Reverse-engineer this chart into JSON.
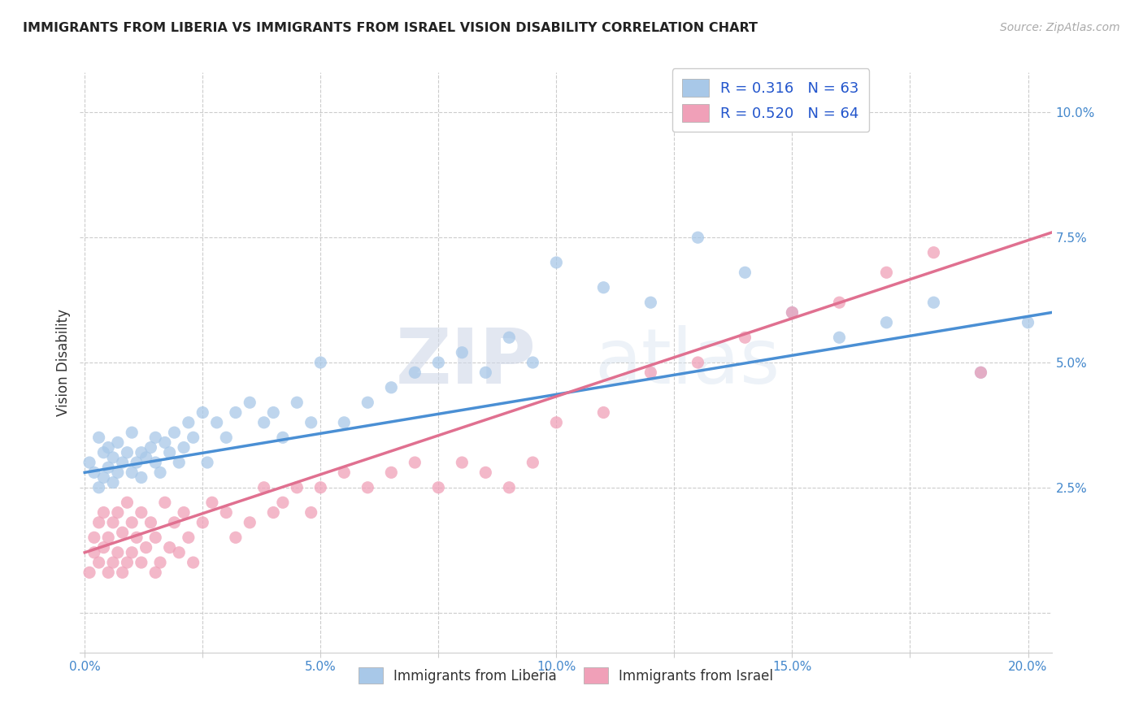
{
  "title": "IMMIGRANTS FROM LIBERIA VS IMMIGRANTS FROM ISRAEL VISION DISABILITY CORRELATION CHART",
  "source": "Source: ZipAtlas.com",
  "xlabel_ticks": [
    "0.0%",
    "",
    "5.0%",
    "",
    "10.0%",
    "",
    "15.0%",
    "",
    "20.0%"
  ],
  "xlabel_tick_vals": [
    0.0,
    0.025,
    0.05,
    0.075,
    0.1,
    0.125,
    0.15,
    0.175,
    0.2
  ],
  "ylabel": "Vision Disability",
  "ylabel_tick_vals": [
    0.0,
    0.025,
    0.05,
    0.075,
    0.1
  ],
  "ylabel_tick_labels": [
    "",
    "2.5%",
    "5.0%",
    "7.5%",
    "10.0%"
  ],
  "xlim": [
    -0.001,
    0.205
  ],
  "ylim": [
    -0.008,
    0.108
  ],
  "line_color_liberia": "#4a8fd4",
  "line_color_israel": "#e07090",
  "color_liberia": "#a8c8e8",
  "color_israel": "#f0a0b8",
  "watermark_zip": "ZIP",
  "watermark_atlas": "atlas",
  "liberia_scatter_x": [
    0.001,
    0.002,
    0.003,
    0.003,
    0.004,
    0.004,
    0.005,
    0.005,
    0.006,
    0.006,
    0.007,
    0.007,
    0.008,
    0.009,
    0.01,
    0.01,
    0.011,
    0.012,
    0.012,
    0.013,
    0.014,
    0.015,
    0.015,
    0.016,
    0.017,
    0.018,
    0.019,
    0.02,
    0.021,
    0.022,
    0.023,
    0.025,
    0.026,
    0.028,
    0.03,
    0.032,
    0.035,
    0.038,
    0.04,
    0.042,
    0.045,
    0.048,
    0.05,
    0.055,
    0.06,
    0.065,
    0.07,
    0.075,
    0.08,
    0.085,
    0.09,
    0.095,
    0.1,
    0.11,
    0.12,
    0.13,
    0.14,
    0.15,
    0.16,
    0.17,
    0.18,
    0.19,
    0.2
  ],
  "liberia_scatter_y": [
    0.03,
    0.028,
    0.035,
    0.025,
    0.032,
    0.027,
    0.029,
    0.033,
    0.031,
    0.026,
    0.034,
    0.028,
    0.03,
    0.032,
    0.028,
    0.036,
    0.03,
    0.032,
    0.027,
    0.031,
    0.033,
    0.035,
    0.03,
    0.028,
    0.034,
    0.032,
    0.036,
    0.03,
    0.033,
    0.038,
    0.035,
    0.04,
    0.03,
    0.038,
    0.035,
    0.04,
    0.042,
    0.038,
    0.04,
    0.035,
    0.042,
    0.038,
    0.05,
    0.038,
    0.042,
    0.045,
    0.048,
    0.05,
    0.052,
    0.048,
    0.055,
    0.05,
    0.07,
    0.065,
    0.062,
    0.075,
    0.068,
    0.06,
    0.055,
    0.058,
    0.062,
    0.048,
    0.058
  ],
  "israel_scatter_x": [
    0.001,
    0.002,
    0.002,
    0.003,
    0.003,
    0.004,
    0.004,
    0.005,
    0.005,
    0.006,
    0.006,
    0.007,
    0.007,
    0.008,
    0.008,
    0.009,
    0.009,
    0.01,
    0.01,
    0.011,
    0.012,
    0.012,
    0.013,
    0.014,
    0.015,
    0.015,
    0.016,
    0.017,
    0.018,
    0.019,
    0.02,
    0.021,
    0.022,
    0.023,
    0.025,
    0.027,
    0.03,
    0.032,
    0.035,
    0.038,
    0.04,
    0.042,
    0.045,
    0.048,
    0.05,
    0.055,
    0.06,
    0.065,
    0.07,
    0.075,
    0.08,
    0.085,
    0.09,
    0.095,
    0.1,
    0.11,
    0.12,
    0.13,
    0.14,
    0.15,
    0.16,
    0.17,
    0.18,
    0.19
  ],
  "israel_scatter_y": [
    0.008,
    0.012,
    0.015,
    0.01,
    0.018,
    0.013,
    0.02,
    0.008,
    0.015,
    0.01,
    0.018,
    0.012,
    0.02,
    0.008,
    0.016,
    0.01,
    0.022,
    0.012,
    0.018,
    0.015,
    0.01,
    0.02,
    0.013,
    0.018,
    0.008,
    0.015,
    0.01,
    0.022,
    0.013,
    0.018,
    0.012,
    0.02,
    0.015,
    0.01,
    0.018,
    0.022,
    0.02,
    0.015,
    0.018,
    0.025,
    0.02,
    0.022,
    0.025,
    0.02,
    0.025,
    0.028,
    0.025,
    0.028,
    0.03,
    0.025,
    0.03,
    0.028,
    0.025,
    0.03,
    0.038,
    0.04,
    0.048,
    0.05,
    0.055,
    0.06,
    0.062,
    0.068,
    0.072,
    0.048
  ],
  "liberia_line": [
    0.028,
    0.06
  ],
  "israel_line": [
    0.012,
    0.076
  ],
  "R_liberia": 0.316,
  "N_liberia": 63,
  "R_israel": 0.52,
  "N_israel": 64
}
